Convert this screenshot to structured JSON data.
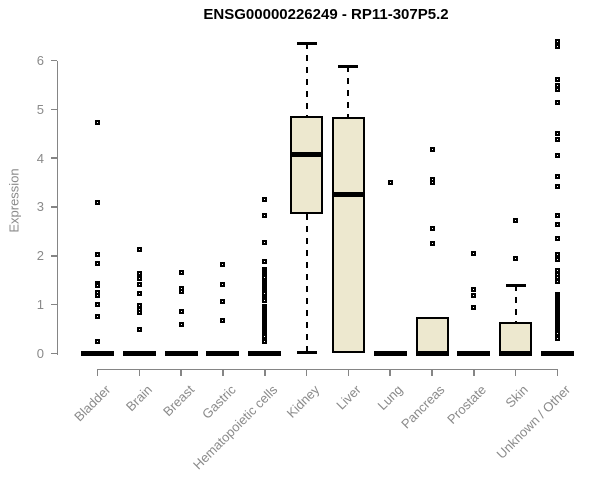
{
  "chart_data": {
    "type": "boxplot",
    "title": "ENSG00000226249 - RP11-307P5.2",
    "ylabel": "Expression",
    "yticks": [
      0,
      1,
      2,
      3,
      4,
      5,
      6
    ],
    "ylim": [
      0,
      6.5
    ],
    "legend": "none",
    "grid": false,
    "colors": {
      "box_fill": "#EDE8CF",
      "box_stroke": "#000000",
      "axis": "#858585",
      "axis_text": "#8a8a8a",
      "title_text": "#000000"
    },
    "categories": [
      "Bladder",
      "Brain",
      "Breast",
      "Gastric",
      "Hematopoietic cells",
      "Kidney",
      "Liver",
      "Lung",
      "Pancreas",
      "Prostate",
      "Skin",
      "Unknown / Other"
    ],
    "series": [
      {
        "label": "Bladder",
        "q1": 0,
        "median": 0,
        "q3": 0,
        "whisker_low": 0,
        "whisker_high": 0,
        "outliers": [
          4.73,
          3.09,
          2.03,
          1.85,
          1.44,
          1.39,
          1.24,
          1.18,
          1.0,
          0.75,
          0.25
        ]
      },
      {
        "label": "Brain",
        "q1": 0,
        "median": 0,
        "q3": 0,
        "whisker_low": 0,
        "whisker_high": 0,
        "outliers": [
          2.12,
          1.64,
          1.53,
          1.42,
          1.23,
          0.97,
          0.9,
          0.83,
          0.49
        ]
      },
      {
        "label": "Breast",
        "q1": 0,
        "median": 0,
        "q3": 0,
        "whisker_low": 0,
        "whisker_high": 0,
        "outliers": [
          1.65,
          1.32,
          1.27,
          0.85,
          0.59
        ]
      },
      {
        "label": "Gastric",
        "q1": 0,
        "median": 0,
        "q3": 0,
        "whisker_low": 0,
        "whisker_high": 0,
        "outliers": [
          1.82,
          1.41,
          1.07,
          0.68
        ]
      },
      {
        "label": "Hematopoietic cells",
        "q1": 0,
        "median": 0,
        "q3": 0,
        "whisker_low": 0,
        "whisker_high": 0,
        "outliers": [
          3.15,
          2.82,
          2.27,
          1.88,
          1.71,
          1.67,
          1.63,
          1.59,
          1.55,
          1.5,
          1.46,
          1.42,
          1.38,
          1.34,
          1.3,
          1.26,
          1.22,
          1.17,
          1.13,
          1.09,
          0.96,
          0.92,
          0.88,
          0.84,
          0.79,
          0.75,
          0.71,
          0.67,
          0.63,
          0.59,
          0.55,
          0.5,
          0.46,
          0.42,
          0.38,
          0.34,
          0.24
        ]
      },
      {
        "label": "Kidney",
        "q1": 2.86,
        "median": 4.07,
        "q3": 4.87,
        "whisker_low": 0.02,
        "whisker_high": 6.36,
        "outliers": []
      },
      {
        "label": "Liver",
        "q1": 0.01,
        "median": 3.26,
        "q3": 4.85,
        "whisker_low": 0.01,
        "whisker_high": 5.89,
        "outliers": []
      },
      {
        "label": "Lung",
        "q1": 0,
        "median": 0,
        "q3": 0,
        "whisker_low": 0,
        "whisker_high": 0,
        "outliers": [
          3.5
        ]
      },
      {
        "label": "Pancreas",
        "q1": 0,
        "median": 0,
        "q3": 0.75,
        "whisker_low": 0,
        "whisker_high": 0.75,
        "outliers": [
          4.17,
          3.56,
          3.51,
          2.56,
          2.26
        ]
      },
      {
        "label": "Prostate",
        "q1": 0,
        "median": 0,
        "q3": 0,
        "whisker_low": 0,
        "whisker_high": 0,
        "outliers": [
          2.05,
          1.3,
          1.18,
          0.94
        ]
      },
      {
        "label": "Skin",
        "q1": 0,
        "median": 0,
        "q3": 0.65,
        "whisker_low": 0,
        "whisker_high": 1.4,
        "outliers": [
          2.72,
          1.95
        ]
      },
      {
        "label": "Unknown / Other",
        "q1": 0,
        "median": 0,
        "q3": 0,
        "whisker_low": 0,
        "whisker_high": 0,
        "outliers": [
          6.4,
          6.29,
          5.62,
          5.5,
          5.4,
          5.14,
          4.5,
          4.39,
          4.05,
          3.62,
          3.43,
          2.82,
          2.64,
          2.36,
          2.03,
          1.92,
          1.69,
          1.62,
          1.55,
          1.48,
          1.2,
          1.16,
          1.12,
          1.08,
          1.04,
          1.0,
          0.96,
          0.92,
          0.88,
          0.84,
          0.8,
          0.76,
          0.72,
          0.68,
          0.64,
          0.6,
          0.56,
          0.52,
          0.48,
          0.44,
          0.4,
          0.35,
          0.31
        ]
      }
    ]
  }
}
